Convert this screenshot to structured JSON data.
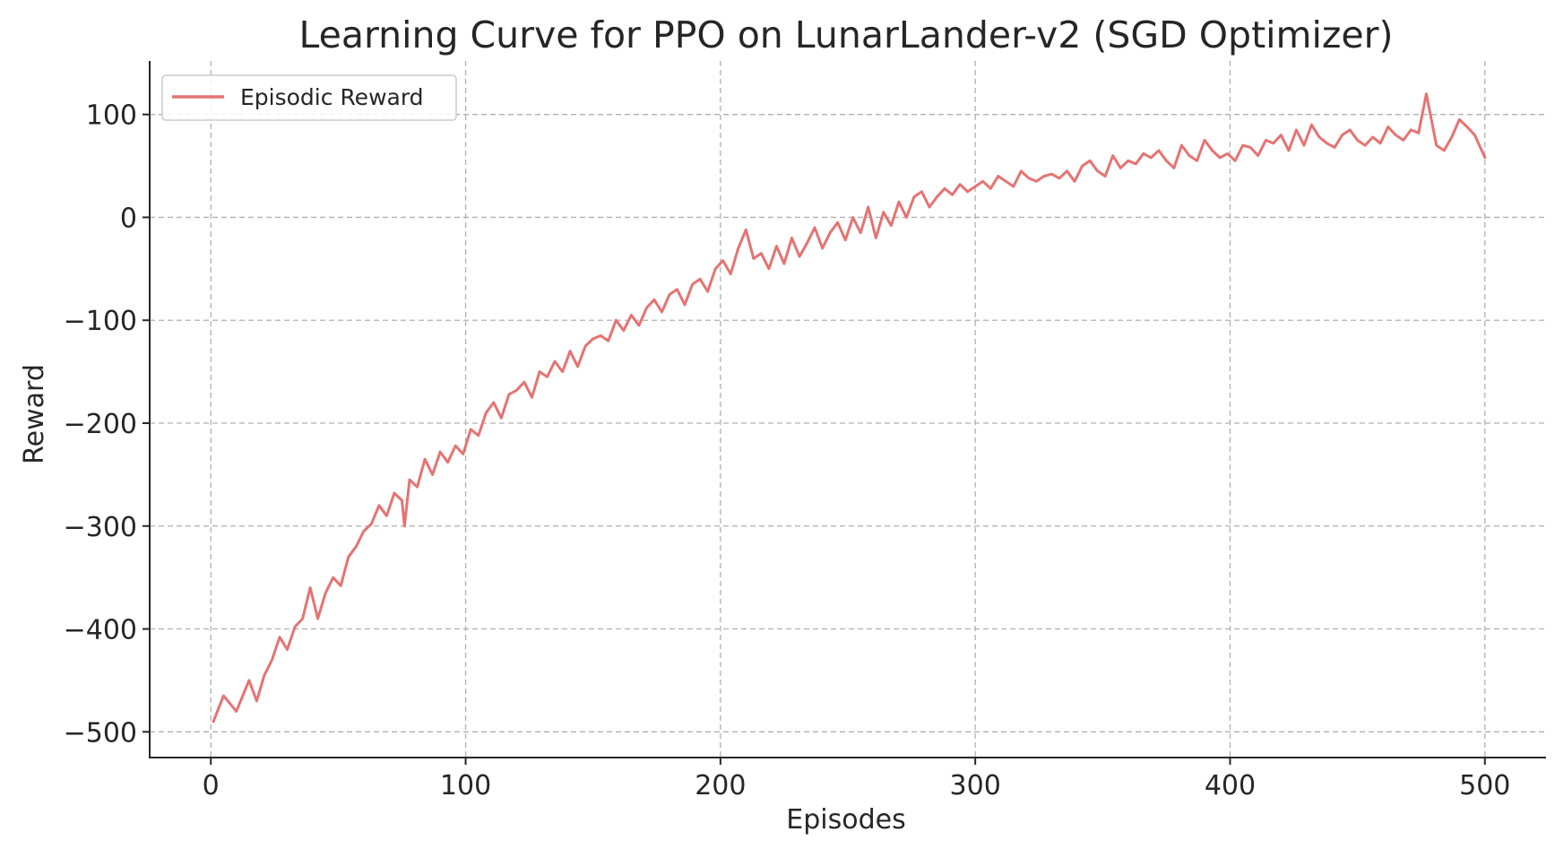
{
  "chart_data": {
    "type": "line",
    "title": "Learning Curve for PPO on LunarLander-v2 (SGD Optimizer)",
    "xlabel": "Episodes",
    "ylabel": "Reward",
    "xlim": [
      -24,
      524
    ],
    "ylim": [
      -525,
      152
    ],
    "x_ticks": [
      0,
      100,
      200,
      300,
      400,
      500
    ],
    "x_tick_labels": [
      "0",
      "100",
      "200",
      "300",
      "400",
      "500"
    ],
    "y_ticks": [
      100,
      0,
      -100,
      -200,
      -300,
      -400,
      -500
    ],
    "y_tick_labels": [
      "100",
      "0",
      "−100",
      "−200",
      "−300",
      "−400",
      "−500"
    ],
    "grid": true,
    "legend_position": "top-left",
    "series": [
      {
        "name": "Episodic Reward",
        "color": "#e57373",
        "x": [
          1,
          5,
          10,
          15,
          18,
          21,
          24,
          27,
          30,
          33,
          36,
          39,
          42,
          45,
          48,
          51,
          54,
          57,
          60,
          63,
          66,
          69,
          72,
          75,
          76,
          78,
          81,
          84,
          87,
          90,
          93,
          96,
          99,
          102,
          105,
          108,
          111,
          114,
          117,
          120,
          123,
          126,
          129,
          132,
          135,
          138,
          141,
          144,
          147,
          150,
          153,
          156,
          159,
          162,
          165,
          168,
          171,
          174,
          177,
          180,
          183,
          186,
          189,
          192,
          195,
          198,
          201,
          204,
          207,
          210,
          213,
          216,
          219,
          222,
          225,
          228,
          231,
          234,
          237,
          240,
          243,
          246,
          249,
          252,
          255,
          258,
          261,
          264,
          267,
          270,
          273,
          276,
          279,
          282,
          285,
          288,
          291,
          294,
          297,
          300,
          303,
          306,
          309,
          312,
          315,
          318,
          321,
          324,
          327,
          330,
          333,
          336,
          339,
          342,
          345,
          348,
          351,
          354,
          357,
          360,
          363,
          366,
          369,
          372,
          375,
          378,
          381,
          384,
          387,
          390,
          393,
          396,
          399,
          402,
          405,
          408,
          411,
          414,
          417,
          420,
          423,
          426,
          429,
          432,
          435,
          438,
          441,
          444,
          447,
          450,
          453,
          456,
          459,
          462,
          465,
          468,
          471,
          474,
          477,
          479,
          481,
          484,
          487,
          490,
          493,
          496,
          500
        ],
        "values": [
          -490,
          -465,
          -480,
          -450,
          -470,
          -445,
          -430,
          -408,
          -420,
          -398,
          -390,
          -360,
          -390,
          -365,
          -350,
          -358,
          -330,
          -320,
          -305,
          -298,
          -280,
          -290,
          -268,
          -275,
          -300,
          -255,
          -262,
          -235,
          -250,
          -228,
          -238,
          -222,
          -230,
          -206,
          -212,
          -190,
          -180,
          -195,
          -172,
          -168,
          -160,
          -175,
          -150,
          -155,
          -140,
          -150,
          -130,
          -145,
          -125,
          -118,
          -115,
          -120,
          -100,
          -110,
          -95,
          -105,
          -88,
          -80,
          -92,
          -75,
          -70,
          -85,
          -65,
          -60,
          -72,
          -50,
          -42,
          -55,
          -30,
          -12,
          -40,
          -35,
          -50,
          -28,
          -45,
          -20,
          -38,
          -25,
          -10,
          -30,
          -15,
          -5,
          -22,
          0,
          -15,
          10,
          -20,
          5,
          -8,
          15,
          0,
          20,
          25,
          10,
          20,
          28,
          22,
          32,
          25,
          30,
          35,
          28,
          40,
          35,
          30,
          45,
          38,
          35,
          40,
          42,
          38,
          45,
          35,
          50,
          55,
          45,
          40,
          60,
          48,
          55,
          52,
          62,
          58,
          65,
          55,
          48,
          70,
          60,
          55,
          75,
          65,
          58,
          62,
          55,
          70,
          68,
          60,
          75,
          72,
          80,
          65,
          85,
          70,
          90,
          78,
          72,
          68,
          80,
          85,
          75,
          70,
          78,
          72,
          88,
          80,
          75,
          85,
          82,
          120,
          95,
          70,
          65,
          78,
          95,
          88,
          80,
          58
        ]
      }
    ]
  }
}
